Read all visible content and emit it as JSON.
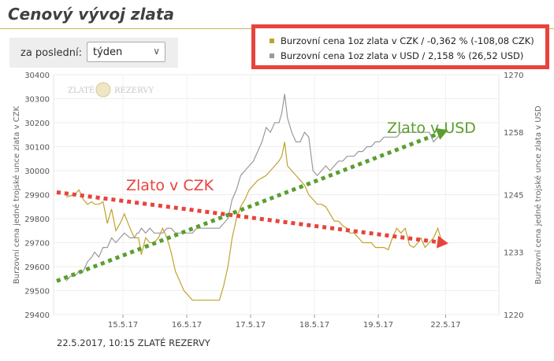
{
  "page": {
    "title": "Cenový vývoj zlata",
    "period_label": "za poslední:",
    "period_value": "týden",
    "footer": "22.5.2017, 10:15 ZLATÉ REZERVY"
  },
  "colors": {
    "czk": "#bfa32b",
    "usd": "#999999",
    "trend_czk": "#e8433c",
    "trend_usd": "#5b9e2f",
    "frame": "#e8433c"
  },
  "icons": {
    "select": "chevron-down-icon",
    "watermark": "zlate-rezervy-logo"
  },
  "chart_data": {
    "type": "line",
    "x": [
      "15.5.17",
      "16.5.17",
      "17.5.17",
      "18.5.17",
      "19.5.17",
      "22.5.17"
    ],
    "xlabel": "",
    "ylabel_left": "Burzovní cena jedné trojské unce zlata v CZK",
    "ylabel_right": "Burzovní cena jedné trojské unce zlata v USD",
    "y_left_range": [
      29400,
      30400
    ],
    "y_left_ticks": [
      "30400",
      "30300",
      "30200",
      "30100",
      "30000",
      "29900",
      "29800",
      "29700",
      "29600",
      "29500",
      "29400"
    ],
    "y_right_range": [
      1220,
      1270
    ],
    "y_right_ticks": [
      "1270",
      "1258",
      "1245",
      "1233",
      "1220"
    ],
    "grid": true,
    "legend_position": "top-right",
    "watermark_left": "ZLATÉ",
    "watermark_right": "REZERVY",
    "series": [
      {
        "name": "Burzovní cena 1oz zlata v CZK / -0,362 % (-108,08 CZK)",
        "axis": "left",
        "x": [
          0,
          0.06,
          0.12,
          0.18,
          0.24,
          0.3,
          0.36,
          0.4,
          0.46,
          0.52,
          0.58,
          0.64,
          0.7,
          0.76,
          0.82,
          0.9,
          0.96,
          1.0,
          1.02,
          1.06,
          1.12,
          1.18,
          1.24,
          1.3,
          1.36,
          1.42,
          1.48,
          1.54,
          1.6,
          1.66,
          1.72,
          1.78,
          1.84,
          1.9,
          1.96,
          2.0,
          2.04,
          2.1,
          2.16,
          2.22,
          2.28,
          2.34,
          2.4,
          2.46,
          2.52,
          2.58,
          2.64,
          2.7,
          2.76,
          2.82,
          2.88,
          2.94,
          3.0,
          3.04,
          3.08,
          3.12,
          3.18,
          3.24,
          3.3,
          3.36,
          3.42,
          3.48,
          3.54,
          3.6,
          3.66,
          3.72,
          3.78,
          3.84,
          3.9,
          3.96,
          4.0,
          4.06,
          4.12,
          4.18,
          4.24,
          4.3,
          4.36,
          4.42,
          4.48,
          4.54,
          4.6,
          4.66,
          4.72,
          4.78,
          4.84,
          4.9,
          4.96,
          5.0,
          5.06,
          5.12,
          5.18,
          5.24,
          5.3
        ],
        "values": [
          29890,
          29895,
          29900,
          29920,
          29880,
          29860,
          29870,
          29860,
          29860,
          29870,
          29780,
          29840,
          29750,
          29780,
          29820,
          29760,
          29720,
          29720,
          29720,
          29650,
          29720,
          29700,
          29700,
          29720,
          29760,
          29720,
          29660,
          29580,
          29540,
          29500,
          29480,
          29460,
          29460,
          29460,
          29460,
          29460,
          29460,
          29460,
          29460,
          29520,
          29600,
          29720,
          29800,
          29850,
          29880,
          29920,
          29940,
          29960,
          29970,
          29980,
          30000,
          30020,
          30040,
          30060,
          30120,
          30020,
          30000,
          29980,
          29960,
          29940,
          29900,
          29880,
          29860,
          29860,
          29850,
          29820,
          29790,
          29790,
          29770,
          29760,
          29740,
          29740,
          29720,
          29700,
          29700,
          29700,
          29680,
          29680,
          29680,
          29670,
          29720,
          29760,
          29740,
          29760,
          29690,
          29680,
          29700,
          29720,
          29680,
          29700,
          29720,
          29760,
          29700
        ]
      },
      {
        "name": "Burzovní cena 1oz zlata v USD / 2,158 % (26,52 USD)",
        "axis": "right",
        "x": [
          0,
          0.06,
          0.12,
          0.18,
          0.24,
          0.3,
          0.36,
          0.4,
          0.46,
          0.52,
          0.58,
          0.64,
          0.7,
          0.76,
          0.82,
          0.9,
          0.96,
          1.0,
          1.02,
          1.06,
          1.12,
          1.18,
          1.24,
          1.3,
          1.36,
          1.42,
          1.48,
          1.54,
          1.6,
          1.66,
          1.72,
          1.78,
          1.84,
          1.9,
          1.96,
          2.0,
          2.04,
          2.1,
          2.16,
          2.22,
          2.28,
          2.34,
          2.4,
          2.46,
          2.52,
          2.58,
          2.64,
          2.7,
          2.76,
          2.82,
          2.88,
          2.94,
          3.0,
          3.04,
          3.08,
          3.12,
          3.18,
          3.24,
          3.3,
          3.36,
          3.42,
          3.48,
          3.54,
          3.6,
          3.66,
          3.72,
          3.78,
          3.84,
          3.9,
          3.96,
          4.0,
          4.06,
          4.12,
          4.18,
          4.24,
          4.3,
          4.36,
          4.42,
          4.48,
          4.54,
          4.6,
          4.66,
          4.72,
          4.78,
          4.84,
          4.9,
          4.96,
          5.0,
          5.06,
          5.12,
          5.18,
          5.24,
          5.3
        ],
        "values": [
          1227,
          1228,
          1228,
          1229,
          1229,
          1231,
          1232,
          1233,
          1232,
          1234,
          1234,
          1236,
          1235,
          1236,
          1237,
          1236,
          1236,
          1237,
          1237,
          1238,
          1237,
          1238,
          1237,
          1237,
          1237,
          1238,
          1238,
          1237,
          1237,
          1237,
          1237,
          1237,
          1238,
          1238,
          1238,
          1238,
          1238,
          1238,
          1238,
          1239,
          1240,
          1244,
          1246,
          1249,
          1250,
          1251,
          1252,
          1254,
          1256,
          1259,
          1258,
          1260,
          1260,
          1262,
          1266,
          1261,
          1258,
          1256,
          1256,
          1258,
          1257,
          1250,
          1249,
          1250,
          1251,
          1250,
          1251,
          1252,
          1252,
          1253,
          1253,
          1253,
          1254,
          1254,
          1255,
          1255,
          1256,
          1256,
          1257,
          1257,
          1257,
          1257,
          1258,
          1258,
          1258,
          1258,
          1258,
          1258,
          1258,
          1258,
          1256,
          1257,
          1258
        ]
      }
    ],
    "annotations": [
      {
        "text": "Zlato v CZK",
        "color": "#e8433c"
      },
      {
        "text": "Zlato v USD",
        "color": "#5b9e2f"
      }
    ],
    "trend_czk": {
      "from": [
        0,
        29910
      ],
      "to": [
        5.3,
        29700
      ]
    },
    "trend_usd": {
      "from": [
        0,
        1227
      ],
      "to": [
        5.3,
        1258
      ]
    }
  }
}
